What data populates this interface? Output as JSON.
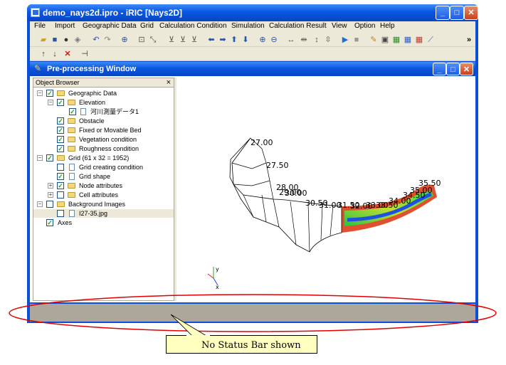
{
  "window": {
    "title": "demo_nays2d.ipro - iRIC [Nays2D]"
  },
  "menu": [
    "File",
    "Import",
    "Geographic Data",
    "Grid",
    "Calculation Condition",
    "Simulation",
    "Calculation Result",
    "View",
    "Option",
    "Help"
  ],
  "toolbar": {
    "overflow": "»"
  },
  "child_window": {
    "title": "Pre-processing Window"
  },
  "object_browser": {
    "title": "Object Browser",
    "close": "×",
    "items": [
      "Geographic Data",
      "Elevation",
      "河川測量データ1",
      "Obstacle",
      "Fixed or Movable Bed",
      "Vegetation condition",
      "Roughness condition",
      "Grid (61 x 32 = 1952)",
      "Grid creating condition",
      "Grid shape",
      "Node attributes",
      "Cell attributes",
      "Background Images",
      "I27-35.jpg",
      "Axes"
    ]
  },
  "canvas": {
    "labels": [
      "27.00",
      "27.50",
      "28.00",
      "29.00",
      "30.00",
      "30.50",
      "31.00",
      "31.50",
      "32.00",
      "33.00",
      "33.50",
      "34.00",
      "34.50",
      "35.00",
      "35.50"
    ],
    "axes": {
      "x": "x",
      "y": "y"
    }
  },
  "annotation": {
    "callout": "No Status Bar shown",
    "highlight_color": "#e00000",
    "callout_color": "#ffffc0"
  }
}
